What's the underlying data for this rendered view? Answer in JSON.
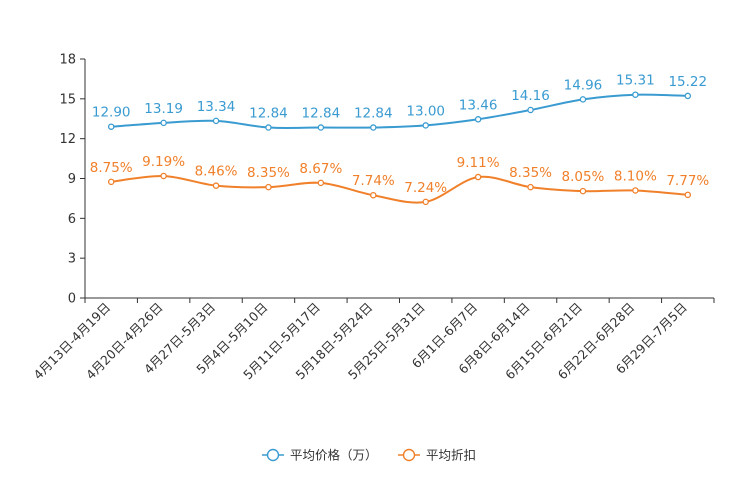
{
  "chart_data": {
    "type": "line",
    "title": "",
    "xlabel": "",
    "ylabel": "",
    "ylim": [
      0,
      18
    ],
    "yticks": [
      0,
      3,
      6,
      9,
      12,
      15,
      18
    ],
    "grid": false,
    "legend_position": "bottom-center",
    "categories": [
      "4月13日-4月19日",
      "4月20日-4月26日",
      "4月27日-5月3日",
      "5月4日-5月10日",
      "5月11日-5月17日",
      "5月18日-5月24日",
      "5月25日-5月31日",
      "6月1日-6月7日",
      "6月8日-6月14日",
      "6月15日-6月21日",
      "6月22日-6月28日",
      "6月29日-7月5日"
    ],
    "series": [
      {
        "name": "平均价格（万）",
        "color": "#3a9bd1",
        "values": [
          12.9,
          13.19,
          13.34,
          12.84,
          12.84,
          12.84,
          13.0,
          13.46,
          14.16,
          14.96,
          15.31,
          15.22
        ],
        "labels": [
          "12.90",
          "13.19",
          "13.34",
          "12.84",
          "12.84",
          "12.84",
          "13.00",
          "13.46",
          "14.16",
          "14.96",
          "15.31",
          "15.22"
        ]
      },
      {
        "name": "平均折扣",
        "color": "#f0802a",
        "values": [
          8.75,
          9.19,
          8.46,
          8.35,
          8.67,
          7.74,
          7.24,
          9.11,
          8.35,
          8.05,
          8.1,
          7.77
        ],
        "labels": [
          "8.75%",
          "9.19%",
          "8.46%",
          "8.35%",
          "8.67%",
          "7.74%",
          "7.24%",
          "9.11%",
          "8.35%",
          "8.05%",
          "8.10%",
          "7.77%"
        ]
      }
    ]
  },
  "colors": {
    "axis": "#333333",
    "tick_text": "#333333",
    "legend_text": "#333333"
  }
}
